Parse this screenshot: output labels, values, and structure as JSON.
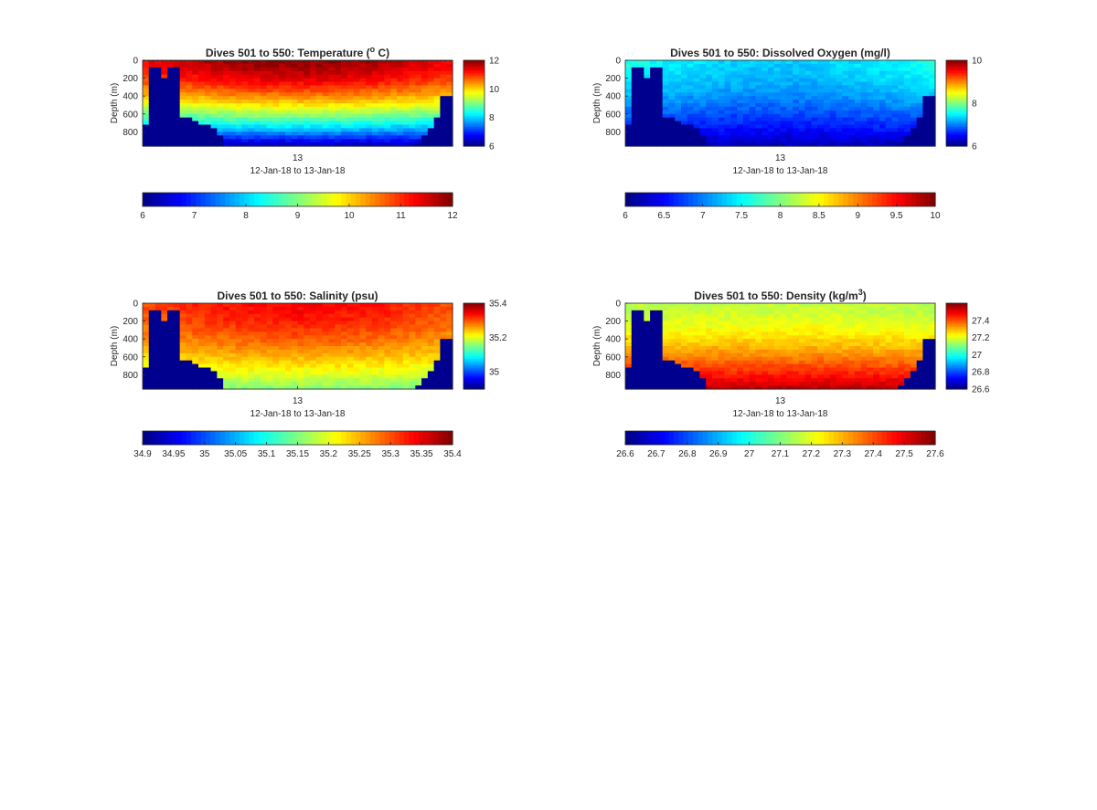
{
  "figure": {
    "chart_data": [
      {
        "type": "heatmap",
        "title_main": "Dives 501 to 550: Temperature (",
        "title_sup": "o",
        "title_end": " C)",
        "ylabel": "Depth (m)",
        "xtick": "13",
        "xlabel": "12-Jan-18 to 13-Jan-18",
        "yticks": [
          0,
          200,
          400,
          600,
          800
        ],
        "ylim": [
          0,
          960
        ],
        "clim": [
          6,
          12
        ],
        "side_colorbar_ticks": [
          "12",
          "10",
          "8",
          "6"
        ],
        "side_colorbar_values": [
          12,
          10,
          8,
          6
        ],
        "bottom_colorbar_ticks": [
          "6",
          "7",
          "8",
          "9",
          "10",
          "11",
          "12"
        ],
        "bottom_colorbar_values": [
          6,
          7,
          8,
          9,
          10,
          11,
          12
        ],
        "dashed_surface": true,
        "profiles": {
          "cols": 50,
          "shallow": 11.3,
          "deep": 6.2,
          "mid_bump": 0.6
        }
      },
      {
        "type": "heatmap",
        "title_main": "Dives 501 to 550: Dissolved Oxygen (mg/l)",
        "title_sup": "",
        "title_end": "",
        "ylabel": "Depth (m)",
        "xtick": "13",
        "xlabel": "12-Jan-18 to 13-Jan-18",
        "yticks": [
          0,
          200,
          400,
          600,
          800
        ],
        "ylim": [
          0,
          960
        ],
        "clim": [
          6,
          10
        ],
        "side_colorbar_ticks": [
          "10",
          "8",
          "6"
        ],
        "side_colorbar_values": [
          10,
          8,
          6
        ],
        "bottom_colorbar_ticks": [
          "6",
          "6.5",
          "7",
          "7.5",
          "8",
          "8.5",
          "9",
          "9.5",
          "10"
        ],
        "bottom_colorbar_values": [
          6,
          6.5,
          7,
          7.5,
          8,
          8.5,
          9,
          9.5,
          10
        ],
        "dashed_surface": false,
        "profiles": {
          "cols": 50,
          "shallow": 7.6,
          "deep": 6.2,
          "mid_bump": -0.3
        }
      },
      {
        "type": "heatmap",
        "title_main": "Dives 501 to 550: Salinity (psu)",
        "title_sup": "",
        "title_end": "",
        "ylabel": "Depth (m)",
        "xtick": "13",
        "xlabel": "12-Jan-18 to 13-Jan-18",
        "yticks": [
          0,
          200,
          400,
          600,
          800
        ],
        "ylim": [
          0,
          960
        ],
        "clim": [
          34.9,
          35.4
        ],
        "side_colorbar_ticks": [
          "35.4",
          "35.2",
          "35"
        ],
        "side_colorbar_values": [
          35.4,
          35.2,
          35.0
        ],
        "bottom_colorbar_ticks": [
          "34.9",
          "34.95",
          "35",
          "35.05",
          "35.1",
          "35.15",
          "35.2",
          "35.25",
          "35.3",
          "35.35",
          "35.4"
        ],
        "bottom_colorbar_values": [
          34.9,
          34.95,
          35.0,
          35.05,
          35.1,
          35.15,
          35.2,
          35.25,
          35.3,
          35.35,
          35.4
        ],
        "dashed_surface": false,
        "profiles": {
          "cols": 50,
          "shallow": 35.3,
          "deep": 35.15,
          "mid_bump": 0.04
        }
      },
      {
        "type": "heatmap",
        "title_main": "Dives 501 to 550: Density (kg/m",
        "title_sup": "3",
        "title_end": ")",
        "ylabel": "Depth (m)",
        "xtick": "13",
        "xlabel": "12-Jan-18 to 13-Jan-18",
        "yticks": [
          0,
          200,
          400,
          600,
          800
        ],
        "ylim": [
          0,
          960
        ],
        "clim": [
          26.6,
          27.6
        ],
        "side_colorbar_ticks": [
          "27.4",
          "27.2",
          "27",
          "26.8",
          "26.6"
        ],
        "side_colorbar_values": [
          27.4,
          27.2,
          27.0,
          26.8,
          26.6
        ],
        "bottom_colorbar_ticks": [
          "26.6",
          "26.7",
          "26.8",
          "26.9",
          "27",
          "27.1",
          "27.2",
          "27.3",
          "27.4",
          "27.5",
          "27.6"
        ],
        "bottom_colorbar_values": [
          26.6,
          26.7,
          26.8,
          26.9,
          27.0,
          27.1,
          27.2,
          27.3,
          27.4,
          27.5,
          27.6
        ],
        "dashed_surface": false,
        "profiles": {
          "cols": 50,
          "shallow": 27.15,
          "deep": 27.55,
          "mid_bump": 0.02
        }
      }
    ]
  }
}
